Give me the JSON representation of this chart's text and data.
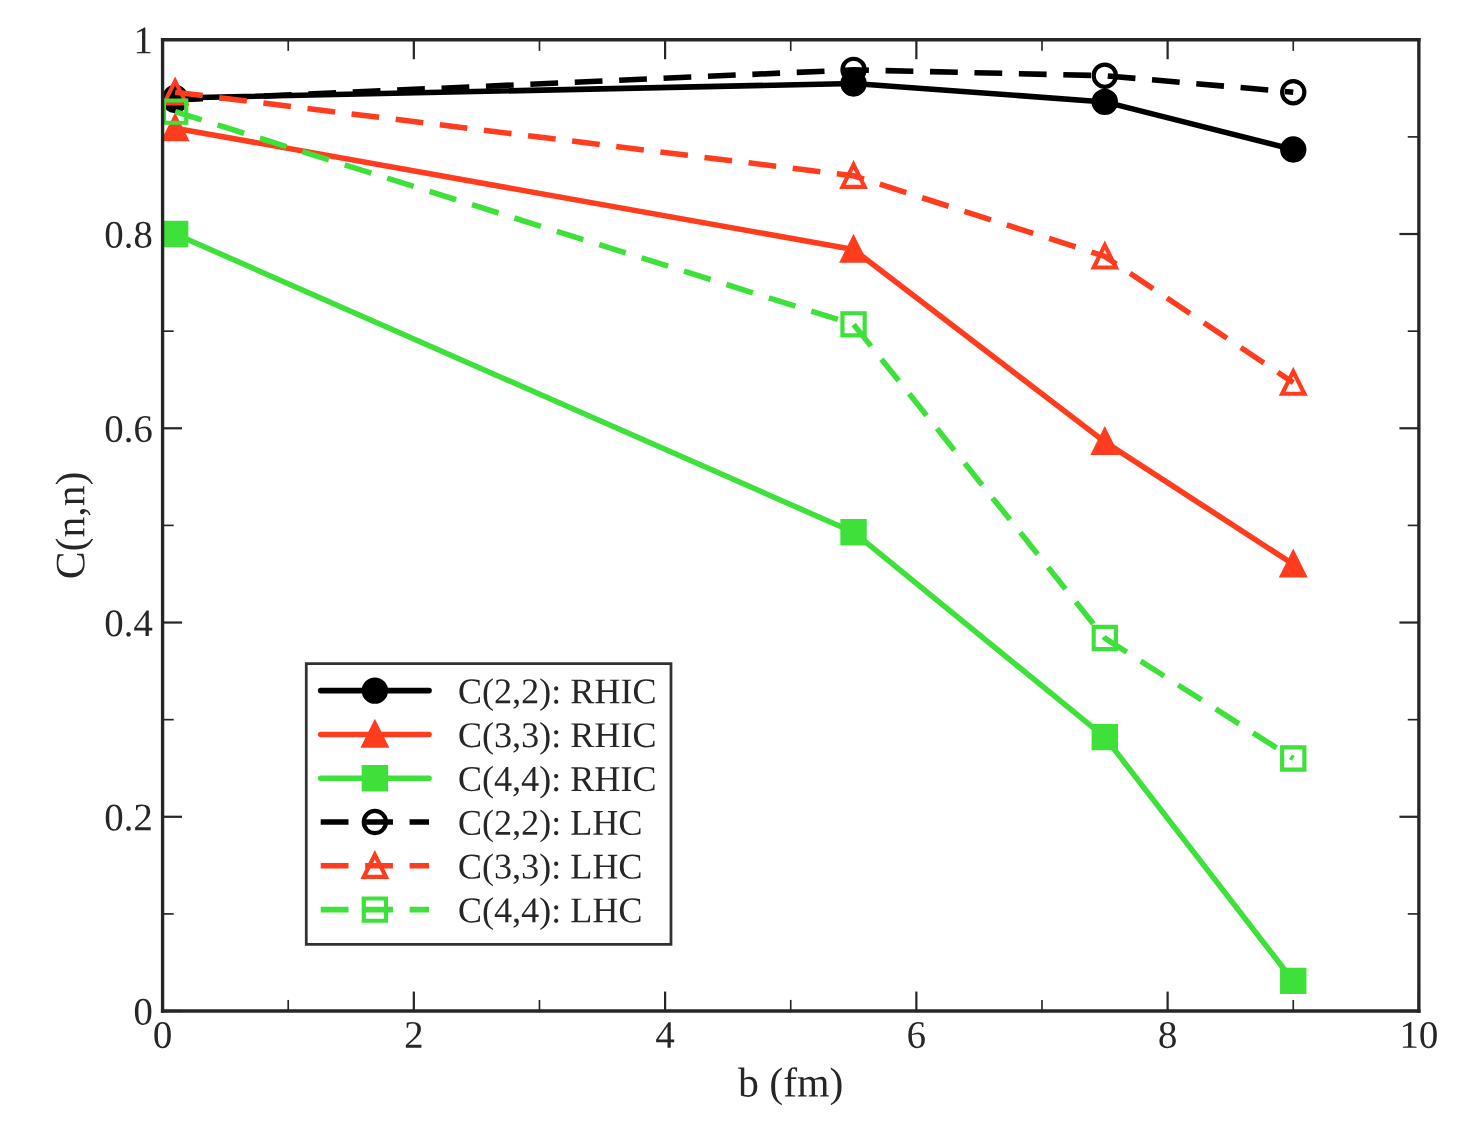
{
  "chart_data": {
    "type": "line",
    "xlabel": "b (fm)",
    "ylabel": "C(n,n)",
    "xlim": [
      0,
      10
    ],
    "ylim": [
      0,
      1
    ],
    "xticks": [
      0,
      2,
      4,
      6,
      8,
      10
    ],
    "yticks": [
      0,
      0.2,
      0.4,
      0.6,
      0.8,
      1
    ],
    "grid": false,
    "legend": "bottom left",
    "series": [
      {
        "name": "C(2,2): RHIC",
        "color": "#000000",
        "marker": "circle",
        "line_style": "solid",
        "x": [
          0.1,
          5.5,
          7.5,
          9
        ],
        "values": [
          0.94,
          0.955,
          0.936,
          0.887
        ]
      },
      {
        "name": "C(3,3): RHIC",
        "color": "#ff3c1e",
        "marker": "triangle",
        "line_style": "solid",
        "x": [
          0.1,
          5.5,
          7.5,
          9
        ],
        "values": [
          0.909,
          0.784,
          0.586,
          0.46
        ]
      },
      {
        "name": "C(4,4): RHIC",
        "color": "#3ee03a",
        "marker": "square",
        "line_style": "solid",
        "x": [
          0.1,
          5.5,
          7.5,
          9
        ],
        "values": [
          0.8,
          0.493,
          0.282,
          0.031
        ]
      },
      {
        "name": "C(2,2): LHC",
        "color": "#000000",
        "marker": "circle",
        "line_style": "dashed",
        "x": [
          0.1,
          5.5,
          7.5,
          9
        ],
        "values": [
          0.938,
          0.969,
          0.963,
          0.946
        ]
      },
      {
        "name": "C(3,3): LHC",
        "color": "#ff3c1e",
        "marker": "triangle",
        "line_style": "dashed",
        "x": [
          0.1,
          5.5,
          7.5,
          9
        ],
        "values": [
          0.946,
          0.86,
          0.777,
          0.647
        ]
      },
      {
        "name": "C(4,4): LHC",
        "color": "#3ee03a",
        "marker": "square",
        "line_style": "dashed",
        "x": [
          0.1,
          5.5,
          7.5,
          9
        ],
        "values": [
          0.926,
          0.707,
          0.384,
          0.26
        ]
      }
    ]
  }
}
